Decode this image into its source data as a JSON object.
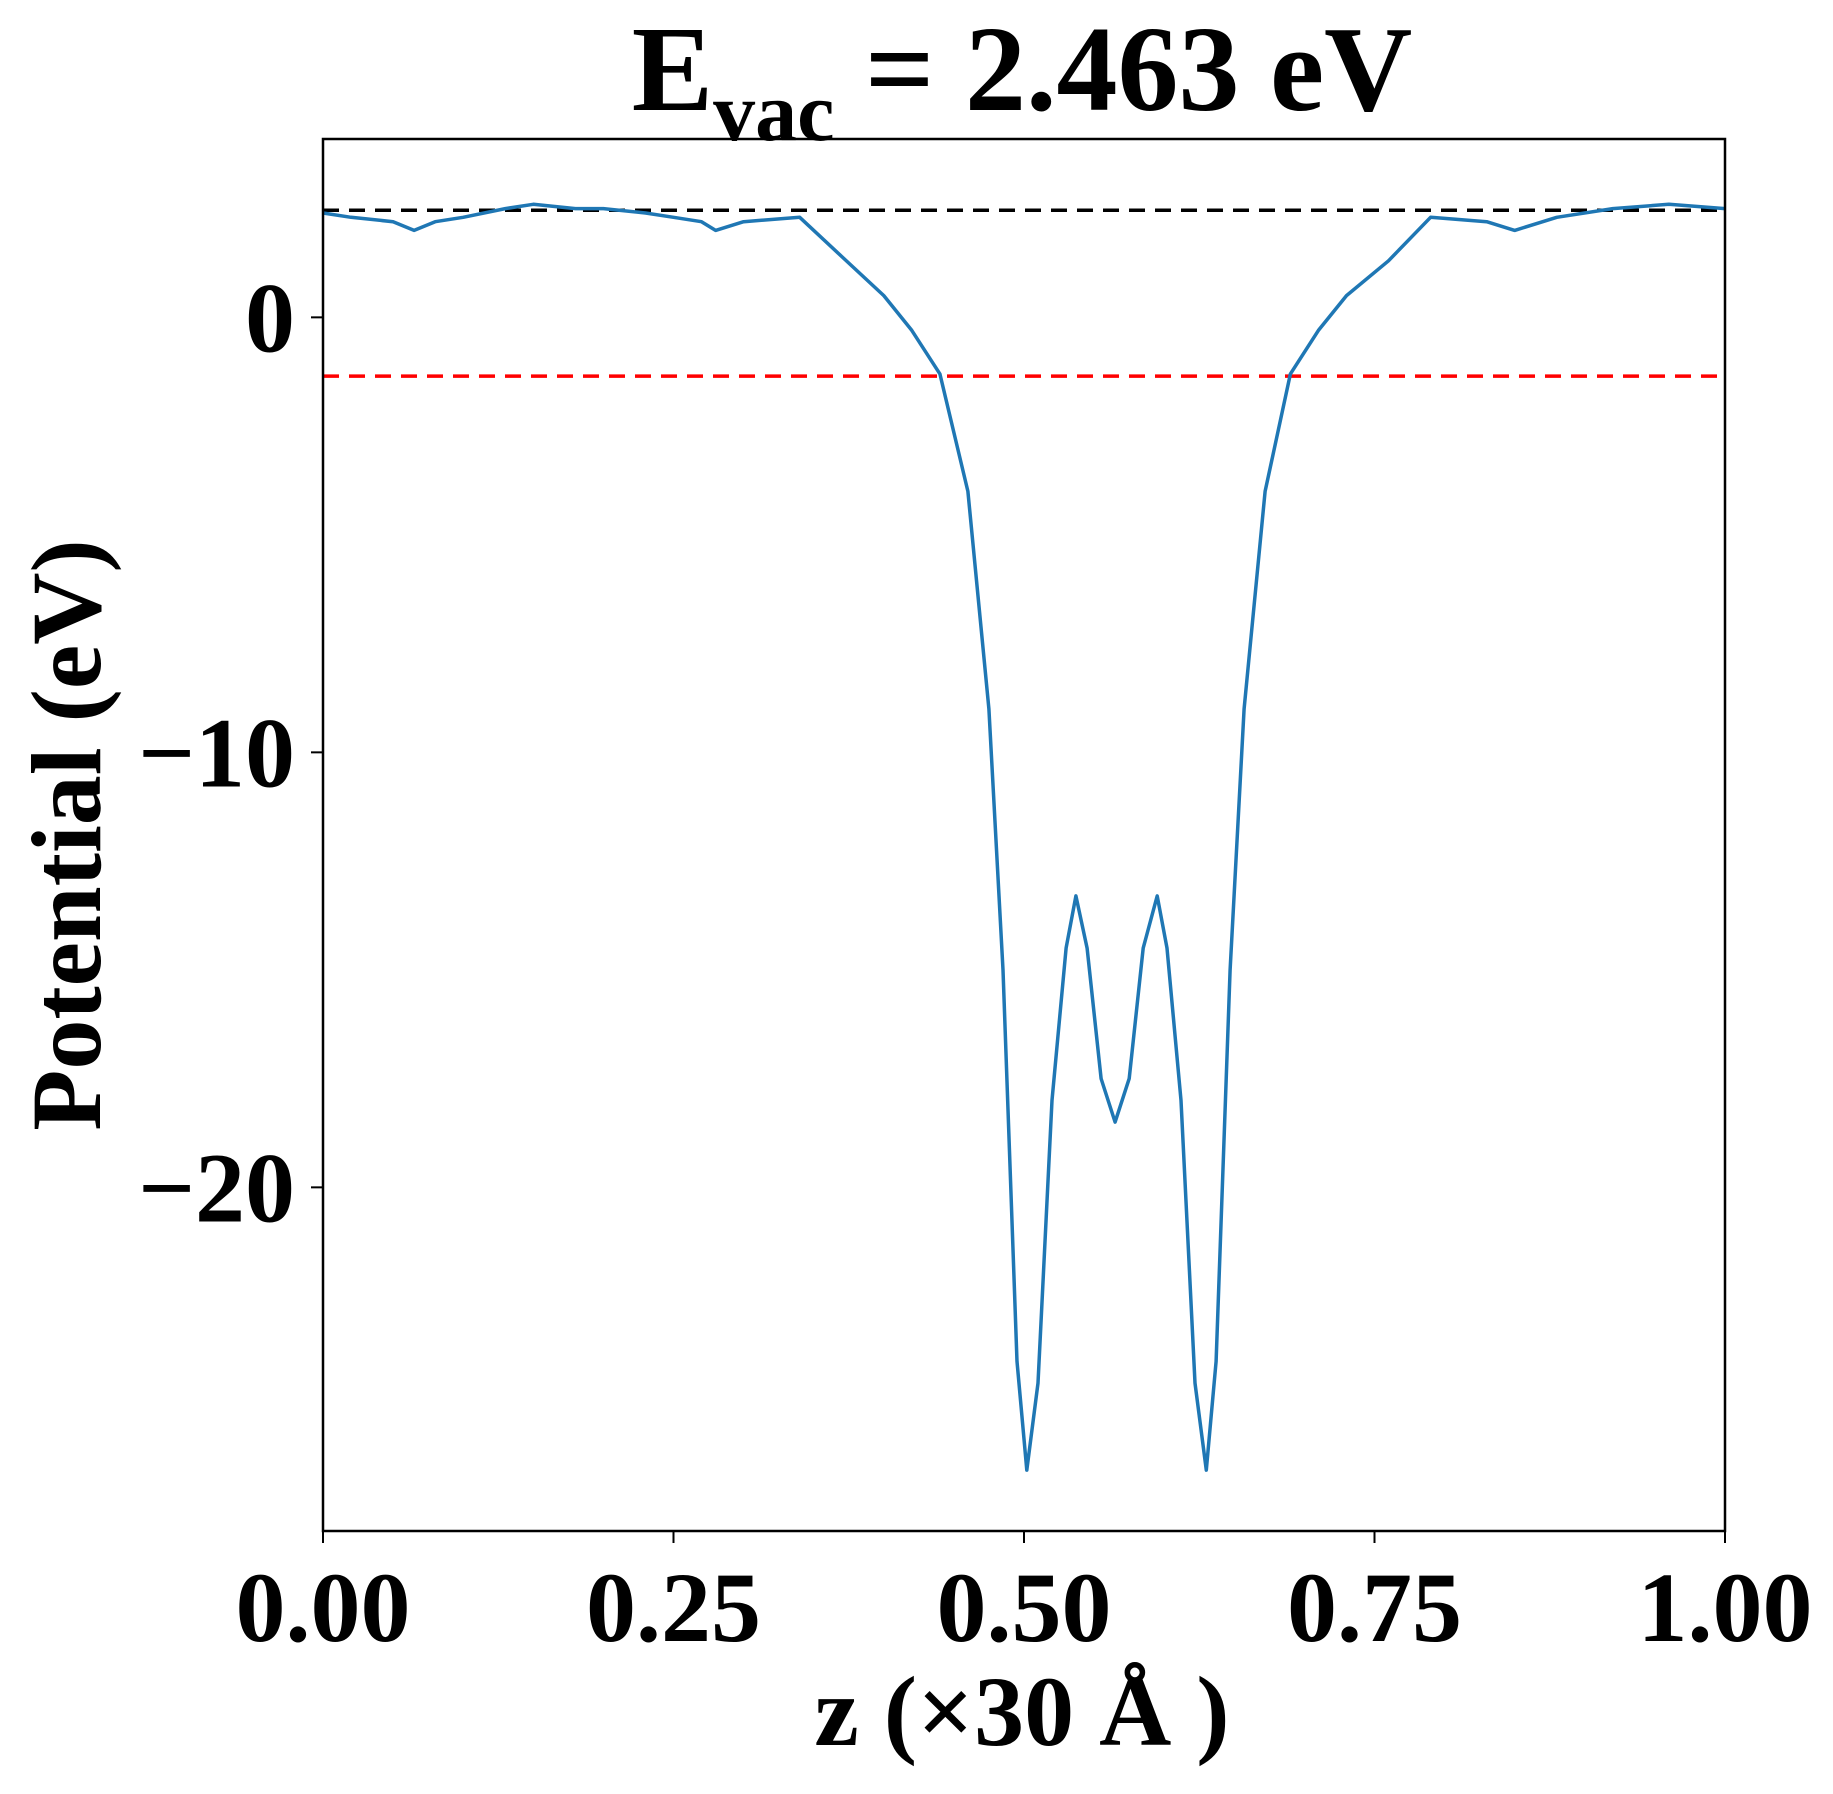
{
  "chart_data": {
    "type": "line",
    "title": {
      "main": "E",
      "sub": "vac",
      "rest": " = 2.463 eV"
    },
    "x_label": "z (×30 Å )",
    "y_label": "Potential (eV)",
    "xlim": [
      0,
      1
    ],
    "ylim": [
      -27.9,
      4.1
    ],
    "xticks": [
      {
        "value": 0,
        "label": "0.00"
      },
      {
        "value": 0.25,
        "label": "0.25"
      },
      {
        "value": 0.5,
        "label": "0.50"
      },
      {
        "value": 0.75,
        "label": "0.75"
      },
      {
        "value": 1,
        "label": "1.00"
      }
    ],
    "yticks": [
      {
        "value": 0,
        "label": "0"
      },
      {
        "value": -10,
        "label": "−10"
      },
      {
        "value": -20,
        "label": "−20"
      }
    ],
    "hlines": [
      {
        "y": 2.463,
        "color": "#000000"
      },
      {
        "y": -1.35,
        "color": "#ff0000"
      }
    ],
    "series": [
      {
        "color": "#1f77b4",
        "x": [
          0,
          0.02,
          0.05,
          0.065,
          0.08,
          0.1,
          0.13,
          0.15,
          0.18,
          0.2,
          0.23,
          0.25,
          0.27,
          0.28,
          0.3,
          0.34,
          0.37,
          0.4,
          0.42,
          0.44,
          0.46,
          0.475,
          0.485,
          0.495,
          0.502,
          0.51,
          0.52,
          0.53,
          0.537,
          0.545,
          0.555,
          0.565,
          0.575,
          0.585,
          0.595,
          0.602,
          0.612,
          0.622,
          0.63,
          0.637,
          0.647,
          0.657,
          0.672,
          0.69,
          0.71,
          0.73,
          0.76,
          0.79,
          0.83,
          0.85,
          0.88,
          0.92,
          0.96,
          1
        ],
        "values": [
          2.4,
          2.3,
          2.2,
          2.0,
          2.2,
          2.3,
          2.5,
          2.6,
          2.5,
          2.5,
          2.4,
          2.3,
          2.2,
          2.0,
          2.2,
          2.3,
          1.4,
          0.5,
          -0.3,
          -1.3,
          -4,
          -9,
          -15,
          -24,
          -26.5,
          -24.5,
          -18,
          -14.5,
          -13.3,
          -14.5,
          -17.5,
          -18.5,
          -17.5,
          -14.5,
          -13.3,
          -14.5,
          -18,
          -24.5,
          -26.5,
          -24,
          -15,
          -9,
          -4,
          -1.3,
          -0.3,
          0.5,
          1.3,
          2.3,
          2.2,
          2.0,
          2.3,
          2.5,
          2.6,
          2.5
        ]
      }
    ]
  }
}
